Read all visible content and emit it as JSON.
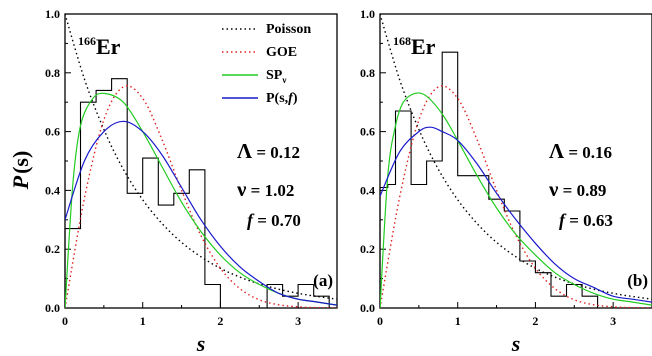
{
  "ylabel_main": "P",
  "ylabel_paren": "(s)",
  "legend": {
    "poisson": "Poisson",
    "goe": "GOE",
    "spv_main": "SP",
    "spv_sub": "ν",
    "psf_prefix": "P(s,",
    "psf_f": "f",
    "psf_suffix": ")"
  },
  "colors": {
    "poisson": "#000000",
    "goe": "#e0211f",
    "spv": "#22cc22",
    "psf": "#1a1acc",
    "histogram": "#000000"
  },
  "chart_data": [
    {
      "type": "line",
      "panel_label": "(a)",
      "nucleus_mass": "166",
      "nucleus_symbol": "Er",
      "xlabel": "s",
      "xlim": [
        0,
        3.5
      ],
      "ylim": [
        0,
        1.0
      ],
      "xticks": [
        0,
        1,
        2,
        3
      ],
      "yticks": [
        "0.0",
        "0.2",
        "0.4",
        "0.6",
        "0.8",
        "1.0"
      ],
      "params": {
        "lambda_label": "Λ",
        "lambda_value": "0.12",
        "nu_label": "ν",
        "nu_value": "1.02",
        "f_label": "f",
        "f_value": "0.70"
      },
      "histogram": {
        "edges": [
          0.0,
          0.2,
          0.4,
          0.6,
          0.8,
          1.0,
          1.2,
          1.4,
          1.6,
          1.8,
          2.0,
          2.2,
          2.4,
          2.6,
          2.8,
          3.0,
          3.2,
          3.4
        ],
        "heights": [
          0.27,
          0.7,
          0.74,
          0.78,
          0.39,
          0.51,
          0.35,
          0.39,
          0.47,
          0.08,
          0.0,
          0.0,
          0.0,
          0.08,
          0.04,
          0.08,
          0.04
        ]
      },
      "series": [
        {
          "key": "poisson",
          "name": "Poisson",
          "x": [
            0,
            0.25,
            0.5,
            0.75,
            1.0,
            1.25,
            1.5,
            1.75,
            2.0,
            2.25,
            2.5,
            2.75,
            3.0,
            3.25,
            3.5
          ],
          "y": [
            1.0,
            0.779,
            0.607,
            0.472,
            0.368,
            0.287,
            0.223,
            0.174,
            0.135,
            0.105,
            0.082,
            0.064,
            0.05,
            0.039,
            0.03
          ]
        },
        {
          "key": "goe",
          "name": "GOE",
          "x": [
            0,
            0.25,
            0.5,
            0.75,
            1.0,
            1.25,
            1.5,
            1.75,
            2.0,
            2.25,
            2.5,
            2.75,
            3.0,
            3.25,
            3.5
          ],
          "y": [
            0.0,
            0.373,
            0.64,
            0.752,
            0.713,
            0.572,
            0.4,
            0.246,
            0.135,
            0.066,
            0.028,
            0.011,
            0.004,
            0.001,
            0.0
          ]
        },
        {
          "key": "spv",
          "name": "SPν",
          "x": [
            0,
            0.1,
            0.2,
            0.35,
            0.5,
            0.75,
            1.0,
            1.25,
            1.5,
            1.75,
            2.0,
            2.25,
            2.5,
            2.75,
            3.0,
            3.25,
            3.5
          ],
          "y": [
            0.0,
            0.42,
            0.62,
            0.71,
            0.73,
            0.7,
            0.6,
            0.48,
            0.36,
            0.26,
            0.18,
            0.12,
            0.08,
            0.05,
            0.03,
            0.02,
            0.01
          ]
        },
        {
          "key": "psf",
          "name": "P(s,f)",
          "x": [
            0,
            0.25,
            0.5,
            0.75,
            1.0,
            1.25,
            1.5,
            1.75,
            2.0,
            2.25,
            2.5,
            2.75,
            3.0,
            3.25,
            3.5
          ],
          "y": [
            0.3,
            0.5,
            0.6,
            0.635,
            0.6,
            0.52,
            0.41,
            0.3,
            0.21,
            0.14,
            0.09,
            0.05,
            0.03,
            0.02,
            0.01
          ]
        }
      ]
    },
    {
      "type": "line",
      "panel_label": "(b)",
      "nucleus_mass": "168",
      "nucleus_symbol": "Er",
      "xlabel": "s",
      "xlim": [
        0,
        3.5
      ],
      "ylim": [
        0,
        1.0
      ],
      "xticks": [
        0,
        1,
        2,
        3
      ],
      "yticks": [
        "0.0",
        "0.2",
        "0.4",
        "0.6",
        "0.8",
        "1.0"
      ],
      "params": {
        "lambda_label": "Λ",
        "lambda_value": "0.16",
        "nu_label": "ν",
        "nu_value": "0.89",
        "f_label": "f",
        "f_value": "0.63"
      },
      "histogram": {
        "edges": [
          0.0,
          0.1,
          0.2,
          0.4,
          0.6,
          0.8,
          1.0,
          1.2,
          1.4,
          1.6,
          1.8,
          2.0,
          2.2,
          2.4,
          2.6,
          2.8
        ],
        "heights": [
          0.41,
          0.42,
          0.67,
          0.42,
          0.5,
          0.87,
          0.45,
          0.45,
          0.37,
          0.33,
          0.16,
          0.12,
          0.04,
          0.08,
          0.04
        ]
      },
      "series": [
        {
          "key": "poisson",
          "name": "Poisson",
          "x": [
            0,
            0.25,
            0.5,
            0.75,
            1.0,
            1.25,
            1.5,
            1.75,
            2.0,
            2.25,
            2.5,
            2.75,
            3.0,
            3.25,
            3.5
          ],
          "y": [
            1.0,
            0.779,
            0.607,
            0.472,
            0.368,
            0.287,
            0.223,
            0.174,
            0.135,
            0.105,
            0.082,
            0.064,
            0.05,
            0.039,
            0.03
          ]
        },
        {
          "key": "goe",
          "name": "GOE",
          "x": [
            0,
            0.25,
            0.5,
            0.75,
            1.0,
            1.25,
            1.5,
            1.75,
            2.0,
            2.25,
            2.5,
            2.75,
            3.0,
            3.25,
            3.5
          ],
          "y": [
            0.0,
            0.373,
            0.64,
            0.752,
            0.713,
            0.572,
            0.4,
            0.246,
            0.135,
            0.066,
            0.028,
            0.011,
            0.004,
            0.001,
            0.0
          ]
        },
        {
          "key": "spv",
          "name": "SPν",
          "x": [
            0,
            0.1,
            0.2,
            0.3,
            0.45,
            0.6,
            0.8,
            1.0,
            1.25,
            1.5,
            1.75,
            2.0,
            2.25,
            2.5,
            2.75,
            3.0,
            3.25,
            3.5
          ],
          "y": [
            0.0,
            0.45,
            0.62,
            0.7,
            0.73,
            0.72,
            0.66,
            0.57,
            0.45,
            0.34,
            0.25,
            0.18,
            0.12,
            0.08,
            0.05,
            0.03,
            0.02,
            0.01
          ]
        },
        {
          "key": "psf",
          "name": "P(s,f)",
          "x": [
            0,
            0.25,
            0.5,
            0.65,
            0.8,
            1.0,
            1.25,
            1.5,
            1.75,
            2.0,
            2.25,
            2.5,
            2.75,
            3.0,
            3.25,
            3.5
          ],
          "y": [
            0.38,
            0.53,
            0.6,
            0.615,
            0.6,
            0.57,
            0.49,
            0.39,
            0.3,
            0.22,
            0.15,
            0.1,
            0.07,
            0.04,
            0.03,
            0.02
          ]
        }
      ]
    }
  ]
}
